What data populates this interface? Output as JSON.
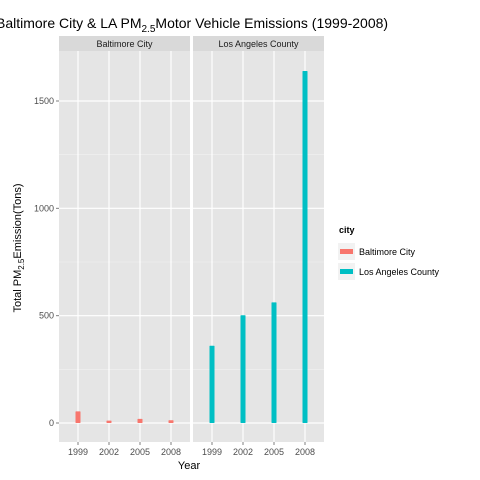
{
  "chart_data": {
    "type": "bar",
    "title": {
      "prefix": "Baltimore City & LA PM",
      "subscript": "2.5",
      "suffix": "Motor Vehicle Emissions (1999-2008)"
    },
    "xlabel": "Year",
    "ylabel": {
      "prefix": "Total PM",
      "subscript": "2.5",
      "suffix": "Emission(Tons)"
    },
    "categories": [
      "1999",
      "2002",
      "2005",
      "2008"
    ],
    "ylim": [
      0,
      1700
    ],
    "yticks": [
      0,
      500,
      1000,
      1500
    ],
    "grid": true,
    "legend": {
      "title": "city",
      "position": "right"
    },
    "series": [
      {
        "name": "Baltimore City",
        "color": "#F8766D",
        "values": [
          54,
          11,
          19,
          13
        ]
      },
      {
        "name": "Los Angeles County",
        "color": "#00BFC4",
        "values": [
          360,
          502,
          562,
          1640
        ]
      }
    ],
    "panels": [
      "Baltimore City",
      "Los Angeles County"
    ]
  }
}
